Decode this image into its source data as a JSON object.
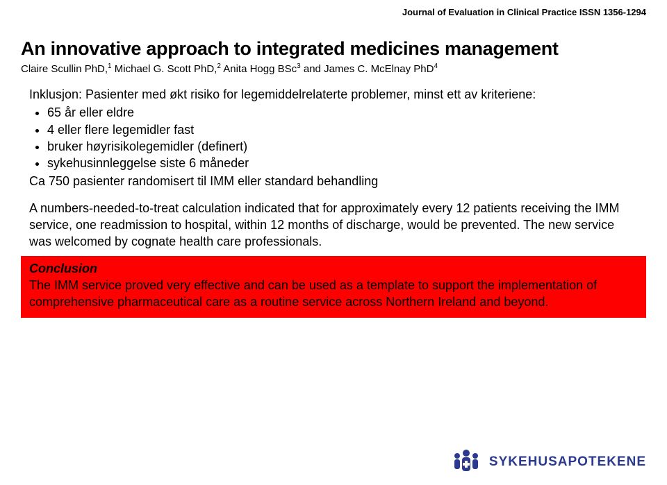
{
  "journal_line": "Journal of Evaluation in Clinical Practice ISSN 1356-1294",
  "title": "An innovative approach to integrated medicines management",
  "authors_html": "Claire Scullin PhD,<sup>1</sup> Michael G. Scott PhD,<sup>2</sup> Anita Hogg BSc<sup>3</sup> and James C. McElnay PhD<sup>4</sup>",
  "inclusion": {
    "lead": "Inklusjon: Pasienter med  økt risiko for legemiddelrelaterte problemer, minst ett av kriteriene:",
    "items": [
      "65 år eller eldre",
      "4 eller flere legemidler fast",
      "bruker høyrisikolegemidler (definert)",
      "sykehusinnleggelse siste 6 måneder"
    ],
    "randomised": "Ca 750 pasienter randomisert til IMM eller standard behandling"
  },
  "nnt": "A numbers-needed-to-treat calculation indicated that for approximately every 12 patients receiving the IMM service, one readmission to hospital, within 12 months of discharge, would be prevented. The new service was welcomed by cognate health care professionals.",
  "conclusion": {
    "head": "Conclusion",
    "body": "The IMM service proved very effective and can be used as a template to support the implementation of comprehensive pharmaceutical care as a routine service across Northern Ireland and beyond."
  },
  "logo_text": "SYKEHUSAPOTEKENE",
  "colors": {
    "highlight_bg": "#ff0000",
    "logo_color": "#2b3a8f",
    "text": "#000000",
    "bg": "#ffffff"
  }
}
